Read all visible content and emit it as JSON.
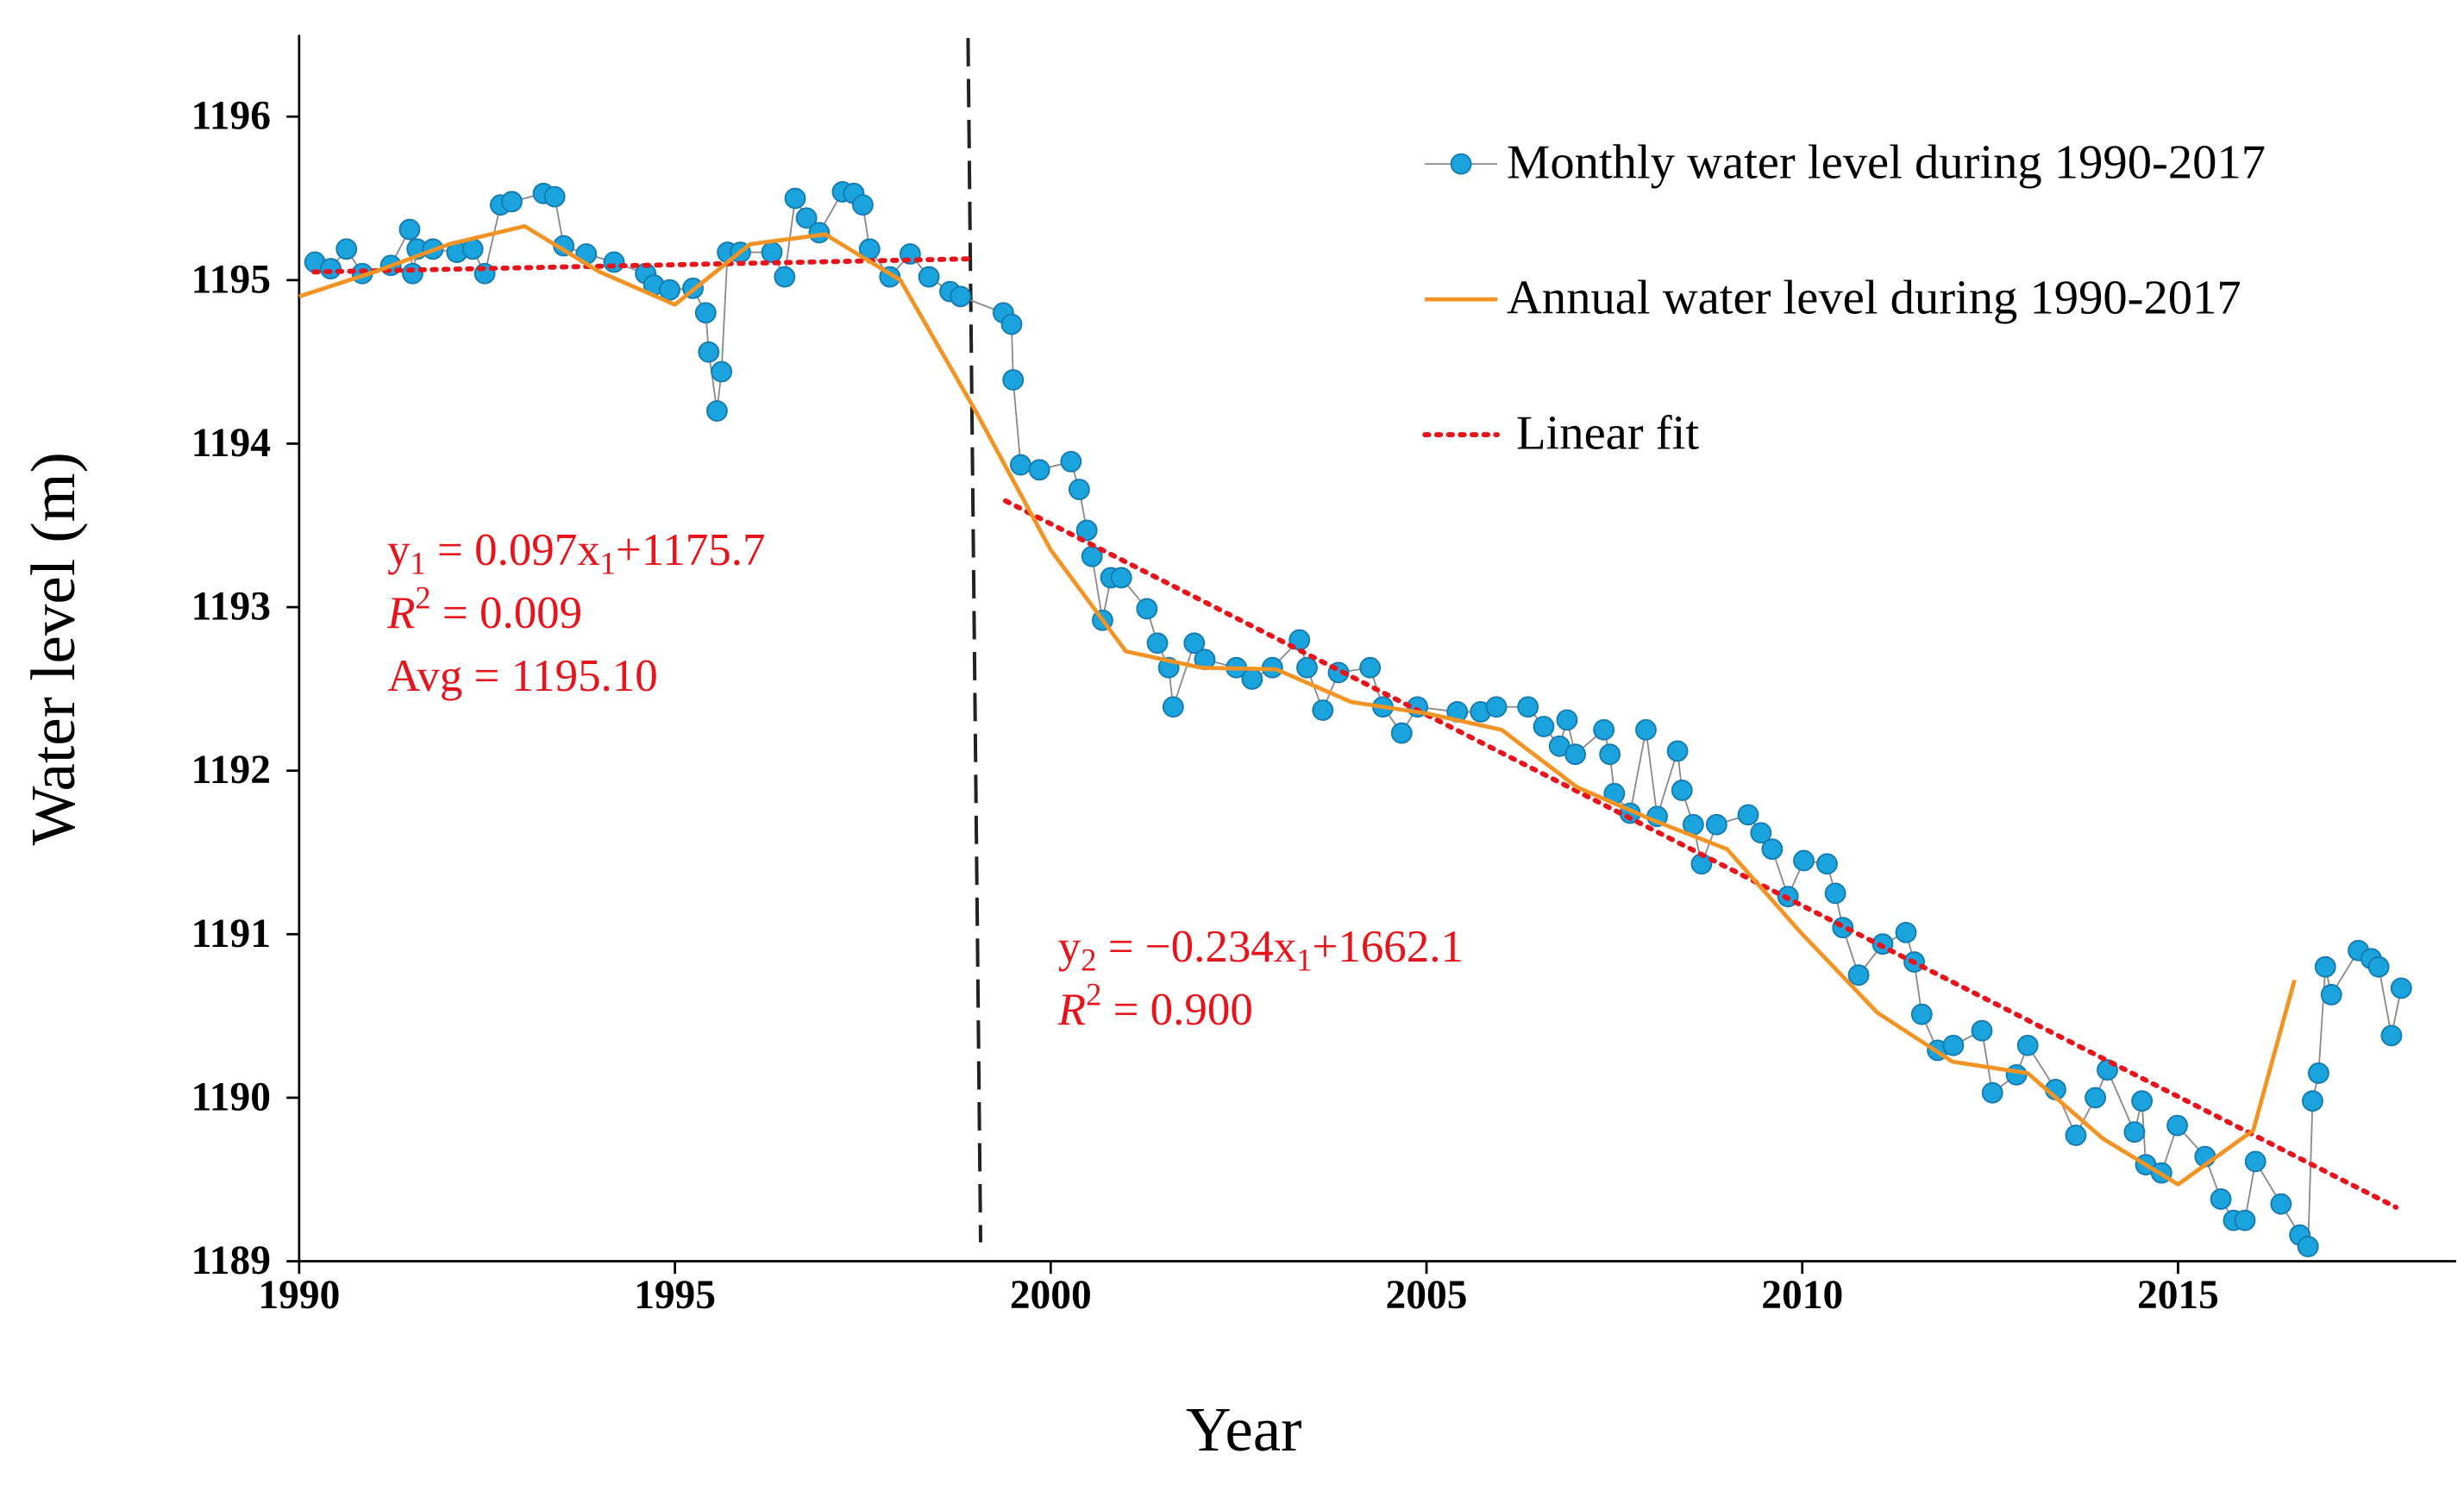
{
  "chart_data": {
    "type": "line",
    "xlabel": "Year",
    "ylabel": "Water level (m)",
    "xlim": [
      1990,
      2018.7
    ],
    "ylim": [
      1189,
      1196.5
    ],
    "xticks": [
      1990,
      1995,
      2000,
      2005,
      2010,
      2015
    ],
    "yticks": [
      1189,
      1190,
      1191,
      1192,
      1193,
      1194,
      1195,
      1196
    ],
    "grid": false,
    "legend": "upper right",
    "vline": 1998.9,
    "series": [
      {
        "name": "Monthly water level during 1990-2017",
        "color": "#1aa3dc",
        "line_color": "#8a8a8a",
        "style": "line-marker",
        "x": [
          1990.21,
          1990.42,
          1990.63,
          1990.84,
          1991.22,
          1991.47,
          1991.51,
          1991.57,
          1991.78,
          1992.1,
          1992.31,
          1992.47,
          1992.68,
          1992.83,
          1993.25,
          1993.4,
          1993.52,
          1993.82,
          1994.19,
          1994.61,
          1994.72,
          1994.93,
          1995.24,
          1995.41,
          1995.45,
          1995.56,
          1995.62,
          1995.7,
          1995.87,
          1996.29,
          1996.46,
          1996.6,
          1996.75,
          1996.92,
          1997.23,
          1997.38,
          1997.5,
          1997.59,
          1997.86,
          1998.13,
          1998.38,
          1998.66,
          1998.8,
          1999.37,
          1999.48,
          1999.5,
          1999.6,
          1999.85,
          2000.27,
          2000.38,
          2000.48,
          2000.55,
          2000.69,
          2000.8,
          2000.94,
          2001.28,
          2001.42,
          2001.57,
          2001.63,
          2001.91,
          2002.05,
          2002.47,
          2002.68,
          2002.95,
          2003.31,
          2003.41,
          2003.62,
          2003.83,
          2004.25,
          2004.42,
          2004.67,
          2004.88,
          2005.41,
          2005.72,
          2005.93,
          2006.35,
          2006.56,
          2006.77,
          2006.87,
          2006.98,
          2007.36,
          2007.44,
          2007.5,
          2007.71,
          2007.92,
          2008.07,
          2008.34,
          2008.4,
          2008.55,
          2008.66,
          2008.86,
          2009.28,
          2009.45,
          2009.6,
          2009.81,
          2010.02,
          2010.33,
          2010.44,
          2010.54,
          2010.75,
          2011.07,
          2011.38,
          2011.49,
          2011.59,
          2011.8,
          2012.01,
          2012.39,
          2012.53,
          2012.85,
          2013.0,
          2013.37,
          2013.64,
          2013.9,
          2014.06,
          2014.42,
          2014.52,
          2014.57,
          2014.78,
          2014.99,
          2015.36,
          2015.57,
          2015.74,
          2015.89,
          2016.03,
          2016.37,
          2016.62,
          2016.73,
          2016.79,
          2016.87,
          2016.96,
          2017.04,
          2017.4,
          2017.57,
          2017.67,
          2017.84,
          2017.97
        ],
        "values": [
          1195.11,
          1195.07,
          1195.19,
          1195.04,
          1195.09,
          1195.31,
          1195.04,
          1195.19,
          1195.19,
          1195.17,
          1195.19,
          1195.04,
          1195.46,
          1195.48,
          1195.53,
          1195.51,
          1195.21,
          1195.16,
          1195.11,
          1195.04,
          1194.97,
          1194.94,
          1194.95,
          1194.8,
          1194.56,
          1194.2,
          1194.44,
          1195.17,
          1195.17,
          1195.17,
          1195.02,
          1195.5,
          1195.38,
          1195.29,
          1195.54,
          1195.53,
          1195.46,
          1195.19,
          1195.02,
          1195.16,
          1195.02,
          1194.93,
          1194.9,
          1194.8,
          1194.73,
          1194.39,
          1193.87,
          1193.84,
          1193.89,
          1193.72,
          1193.47,
          1193.31,
          1192.92,
          1193.18,
          1193.18,
          1192.99,
          1192.78,
          1192.63,
          1192.39,
          1192.78,
          1192.68,
          1192.63,
          1192.56,
          1192.63,
          1192.8,
          1192.63,
          1192.37,
          1192.6,
          1192.63,
          1192.39,
          1192.23,
          1192.39,
          1192.36,
          1192.36,
          1192.39,
          1192.39,
          1192.27,
          1192.15,
          1192.31,
          1192.1,
          1192.25,
          1192.1,
          1191.86,
          1191.74,
          1192.25,
          1191.72,
          1192.12,
          1191.88,
          1191.67,
          1191.43,
          1191.67,
          1191.73,
          1191.62,
          1191.52,
          1191.23,
          1191.45,
          1191.43,
          1191.25,
          1191.04,
          1190.75,
          1190.94,
          1191.01,
          1190.83,
          1190.51,
          1190.29,
          1190.32,
          1190.41,
          1190.03,
          1190.14,
          1190.32,
          1190.05,
          1189.77,
          1190.0,
          1190.17,
          1189.79,
          1189.98,
          1189.59,
          1189.54,
          1189.83,
          1189.64,
          1189.38,
          1189.25,
          1189.25,
          1189.61,
          1189.35,
          1189.16,
          1189.09,
          1189.98,
          1190.15,
          1190.8,
          1190.63,
          1190.9,
          1190.85,
          1190.8,
          1190.38,
          1190.67
        ]
      },
      {
        "name": "Annual water level during 1990-2017",
        "color": "#f39323",
        "style": "line",
        "x": [
          1990,
          1991,
          1992,
          1993,
          1994,
          1995,
          1996,
          1997,
          1998,
          1999,
          2000,
          2001,
          2002,
          2003,
          2004,
          2005,
          2006,
          2007,
          2008,
          2009,
          2010,
          2011,
          2012,
          2013,
          2014,
          2015,
          2016,
          2016.55
        ],
        "values": [
          1194.9,
          1195.05,
          1195.22,
          1195.33,
          1195.05,
          1194.85,
          1195.22,
          1195.28,
          1195.0,
          1194.2,
          1193.35,
          1192.73,
          1192.63,
          1192.62,
          1192.42,
          1192.35,
          1192.25,
          1191.9,
          1191.7,
          1191.52,
          1191.0,
          1190.52,
          1190.22,
          1190.15,
          1189.75,
          1189.47,
          1189.8,
          1190.72
        ]
      },
      {
        "name": "Linear fit",
        "color": "#e8141b",
        "style": "dotted",
        "x": [
          1990.2,
          1998.9,
          1999.2,
          1999.4,
          2017.9
        ],
        "values": [
          1195.05,
          1195.13,
          null,
          1193.65,
          1189.33
        ]
      }
    ],
    "annotations": [
      {
        "lines": [
          [
            {
              "text": "y"
            },
            {
              "text": "1",
              "style": "sub"
            },
            {
              "text": " = 0.097x"
            },
            {
              "text": "1",
              "style": "sub"
            },
            {
              "text": "+1175.7"
            }
          ],
          [
            {
              "text": "R",
              "style": "italic"
            },
            {
              "text": "2",
              "style": "sup"
            },
            {
              "text": " = 0.009"
            }
          ],
          [
            {
              "text": "Avg = 1195.10"
            }
          ]
        ]
      },
      {
        "lines": [
          [
            {
              "text": "y"
            },
            {
              "text": "2",
              "style": "sub"
            },
            {
              "text": " = −0.234x"
            },
            {
              "text": "1",
              "style": "sub"
            },
            {
              "text": "+1662.1"
            }
          ],
          [
            {
              "text": "R",
              "style": "italic"
            },
            {
              "text": "2",
              "style": "sup"
            },
            {
              "text": " = 0.900"
            }
          ]
        ]
      }
    ]
  }
}
